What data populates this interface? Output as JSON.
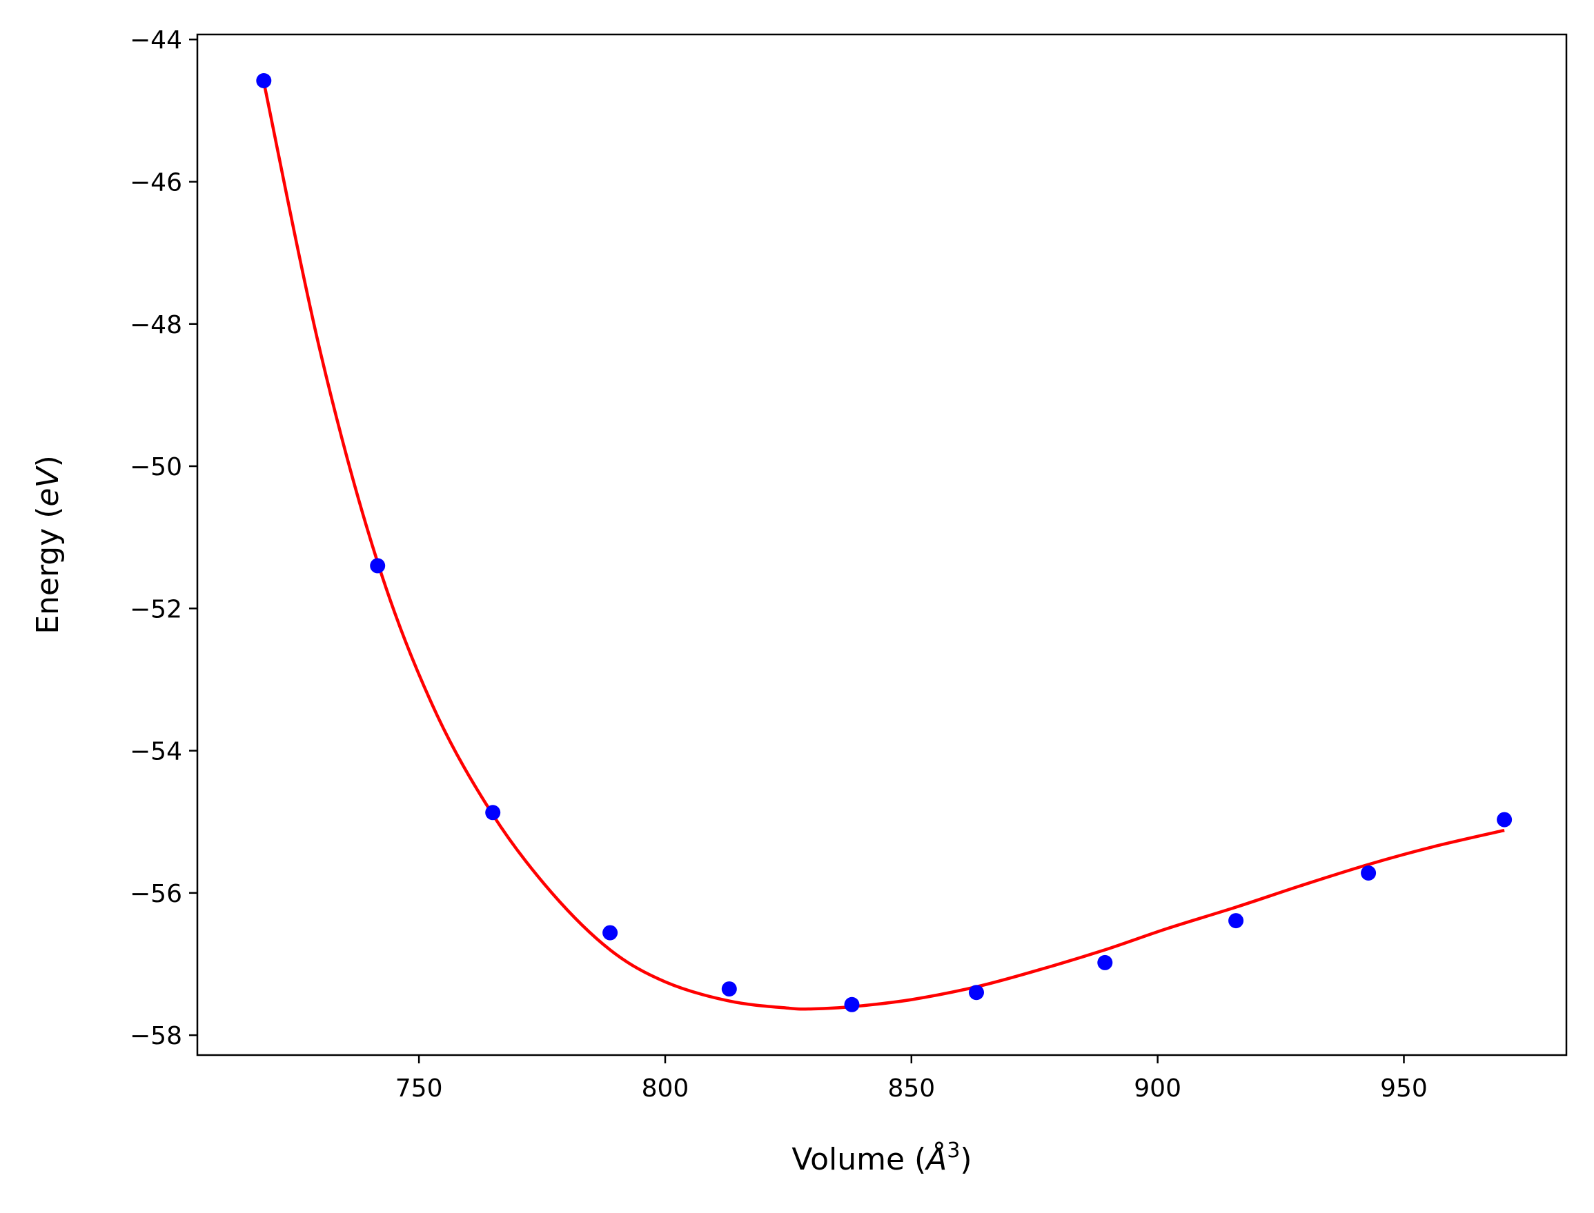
{
  "chart_data": {
    "type": "scatter",
    "xlabel": {
      "prefix": "Volume (",
      "symbol": "Å",
      "sup": "3",
      "suffix": ")"
    },
    "ylabel": {
      "prefix": "Energy (",
      "unit": "eV",
      "suffix": ")"
    },
    "xlim": [
      705,
      983
    ],
    "ylim": [
      -58.28,
      -43.93
    ],
    "xticks": [
      750,
      800,
      850,
      900,
      950
    ],
    "yticks": [
      -44,
      -46,
      -48,
      -50,
      -52,
      -54,
      -56,
      -58
    ],
    "xtick_labels": [
      "750",
      "800",
      "850",
      "900",
      "950"
    ],
    "ytick_labels": [
      "−44",
      "−46",
      "−48",
      "−50",
      "−52",
      "−54",
      "−56",
      "−58"
    ],
    "grid": false,
    "legend": "none",
    "series": [
      {
        "kind": "points",
        "color": "#0000ff",
        "x": [
          718.5,
          741.6,
          765.0,
          788.8,
          813.0,
          837.9,
          863.2,
          889.3,
          915.9,
          942.8,
          970.4
        ],
        "y": [
          -44.58,
          -51.4,
          -54.87,
          -56.56,
          -57.35,
          -57.57,
          -57.4,
          -56.98,
          -56.39,
          -55.72,
          -54.97
        ]
      },
      {
        "kind": "fit",
        "color": "#ff0000",
        "x": [
          718.5,
          730,
          741.6,
          753,
          765.0,
          777,
          788.8,
          800,
          813.0,
          825,
          830,
          837.9,
          850,
          863.2,
          876,
          889.3,
          902,
          915.9,
          929,
          942.8,
          956,
          970.4
        ],
        "y": [
          -44.6,
          -48.4,
          -51.35,
          -53.4,
          -54.9,
          -56.0,
          -56.8,
          -57.25,
          -57.52,
          -57.62,
          -57.63,
          -57.6,
          -57.5,
          -57.32,
          -57.08,
          -56.8,
          -56.5,
          -56.2,
          -55.9,
          -55.6,
          -55.35,
          -55.12
        ]
      }
    ]
  }
}
